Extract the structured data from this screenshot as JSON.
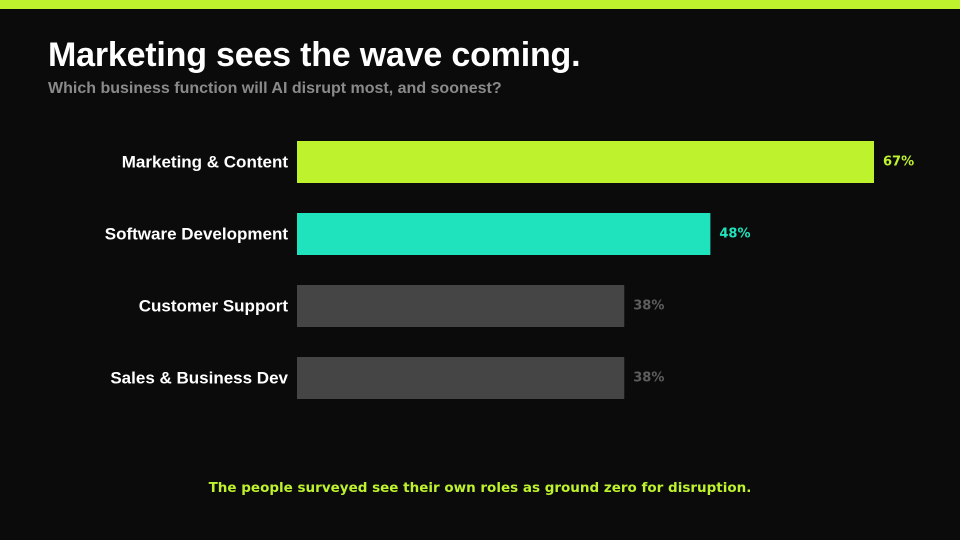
{
  "slide": {
    "title": "Marketing sees the wave coming.",
    "subtitle": "Which business function will AI disrupt most, and soonest?",
    "footnote": "The people surveyed see their own roles as ground zero for disruption."
  },
  "colors": {
    "background": "#0b0b0b",
    "accent": "#bef22d",
    "secondary": "#1fe3bc",
    "neutral_bar": "#454545",
    "neutral_label": "#5e5e5e",
    "subtitle": "#8a8a8a"
  },
  "chart_data": {
    "type": "bar",
    "orientation": "horizontal",
    "title": "",
    "xlabel": "",
    "ylabel": "",
    "categories": [
      "Marketing & Content",
      "Software Development",
      "Customer Support",
      "Sales & Business Dev"
    ],
    "values": [
      67,
      48,
      38,
      38
    ],
    "value_labels": [
      "67%",
      "48%",
      "38%",
      "38%"
    ],
    "unit": "%",
    "xlim": [
      0,
      67
    ],
    "grid": false,
    "legend": "none",
    "bar_colors": [
      "#bef22d",
      "#1fe3bc",
      "#454545",
      "#454545"
    ],
    "value_label_colors": [
      "#bef22d",
      "#1fe3bc",
      "#5e5e5e",
      "#5e5e5e"
    ]
  }
}
